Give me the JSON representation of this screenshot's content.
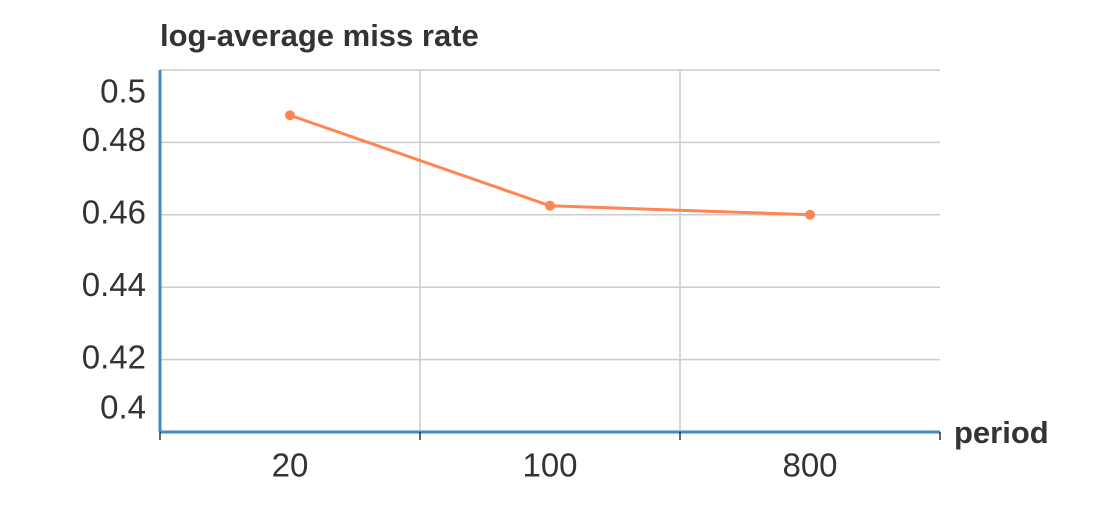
{
  "chart_data": {
    "type": "line",
    "y_label": "log-average miss rate",
    "x_label": "period",
    "categories": [
      "20",
      "100",
      "800"
    ],
    "series": [
      {
        "name": "log-average miss rate",
        "color": "#ff8552",
        "values": [
          0.4875,
          0.4625,
          0.46
        ]
      }
    ],
    "ylim": [
      0.4,
      0.5
    ],
    "yticks": [
      0.4,
      0.42,
      0.44,
      0.46,
      0.48,
      0.5
    ],
    "grid": true,
    "axis_color": "#3f8ac7"
  }
}
